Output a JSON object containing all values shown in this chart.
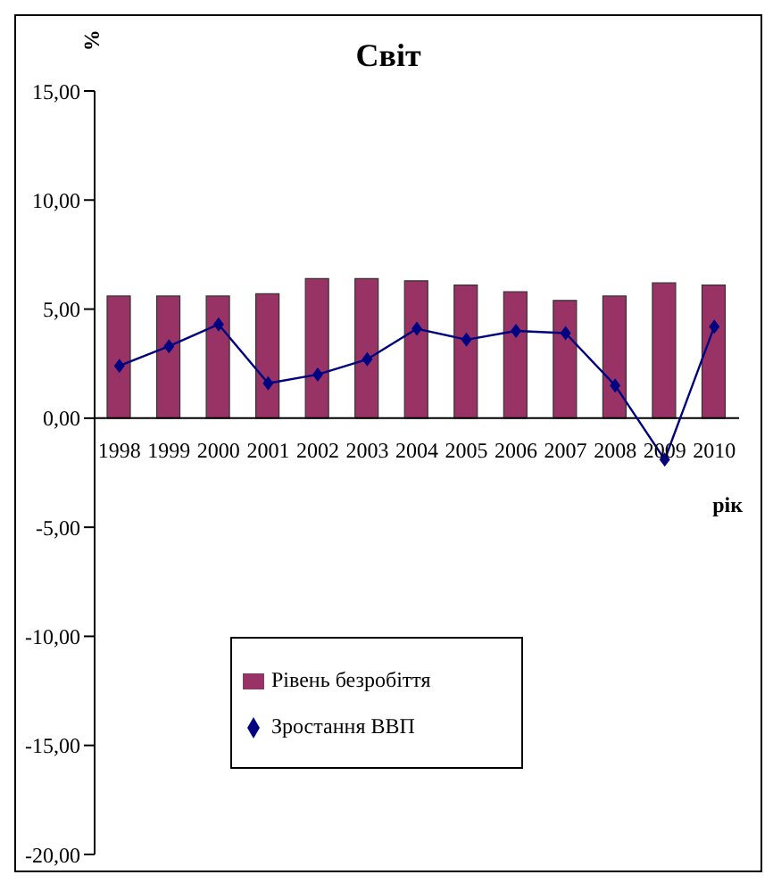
{
  "chart_data": {
    "type": "bar",
    "title": "Світ",
    "xlabel": "рік",
    "ylabel": "%",
    "categories": [
      "1998",
      "1999",
      "2000",
      "2001",
      "2002",
      "2003",
      "2004",
      "2005",
      "2006",
      "2007",
      "2008",
      "2009",
      "2010"
    ],
    "series": [
      {
        "name": "Рівень безробіття",
        "color": "#993366",
        "values": [
          5.6,
          5.6,
          5.6,
          5.7,
          6.4,
          6.4,
          6.3,
          6.1,
          5.8,
          5.4,
          5.6,
          6.2,
          6.1
        ]
      },
      {
        "name": "Зростання ВВП",
        "type": "line",
        "color": "#000080",
        "marker": "diamond",
        "values": [
          2.4,
          3.3,
          4.3,
          1.6,
          2.0,
          2.7,
          4.1,
          3.6,
          4.0,
          3.9,
          1.5,
          -1.9,
          4.2
        ]
      }
    ],
    "ylim": [
      -20,
      15
    ],
    "yticks": [
      {
        "value": -20,
        "label": "-20,00"
      },
      {
        "value": -15,
        "label": "-15,00"
      },
      {
        "value": -10,
        "label": "-10,00"
      },
      {
        "value": -5,
        "label": "-5,00"
      },
      {
        "value": 0,
        "label": "0,00"
      },
      {
        "value": 5,
        "label": "5,00"
      },
      {
        "value": 10,
        "label": "10,00"
      },
      {
        "value": 15,
        "label": "15,00"
      }
    ],
    "grid": false,
    "legend": "bottom"
  }
}
